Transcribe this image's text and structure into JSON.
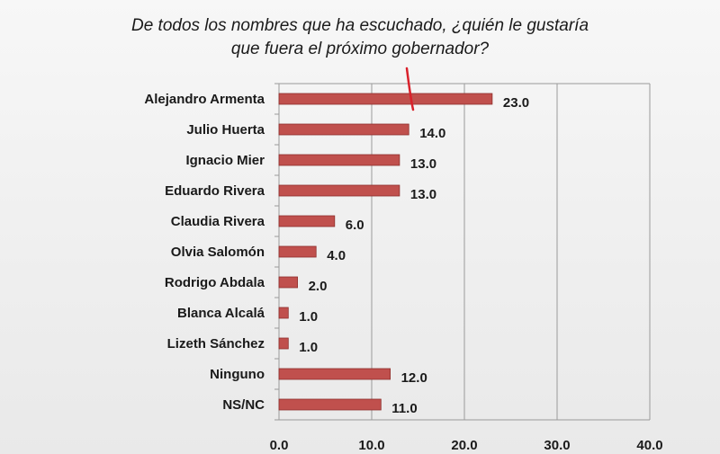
{
  "colors": {
    "bar_fill": "#c0504d",
    "bar_edge": "#8e2f2c",
    "grid": "#9a9a9a",
    "annotation": "#d9212b"
  },
  "chart_data": {
    "type": "bar",
    "orientation": "horizontal",
    "title_line1": "De todos los nombres que ha escuchado, ¿quién le gustaría",
    "title_line2": "que fuera el próximo gobernador?",
    "categories": [
      "Alejandro Armenta",
      "Julio Huerta",
      "Ignacio Mier",
      "Eduardo Rivera",
      "Claudia Rivera",
      "Olvia Salomón",
      "Rodrigo Abdala",
      "Blanca Alcalá",
      "Lizeth Sánchez",
      "Ninguno",
      "NS/NC"
    ],
    "values": [
      23.0,
      14.0,
      13.0,
      13.0,
      6.0,
      4.0,
      2.0,
      1.0,
      1.0,
      12.0,
      11.0
    ],
    "value_labels": [
      "23.0",
      "14.0",
      "13.0",
      "13.0",
      "6.0",
      "4.0",
      "2.0",
      "1.0",
      "1.0",
      "12.0",
      "11.0"
    ],
    "xlim": [
      0,
      40
    ],
    "xticks": [
      0,
      10,
      20,
      30,
      40
    ],
    "xtick_labels": [
      "0.0",
      "10.0",
      "20.0",
      "30.0",
      "40.0"
    ],
    "grid": true,
    "xlabel": "",
    "ylabel": ""
  }
}
